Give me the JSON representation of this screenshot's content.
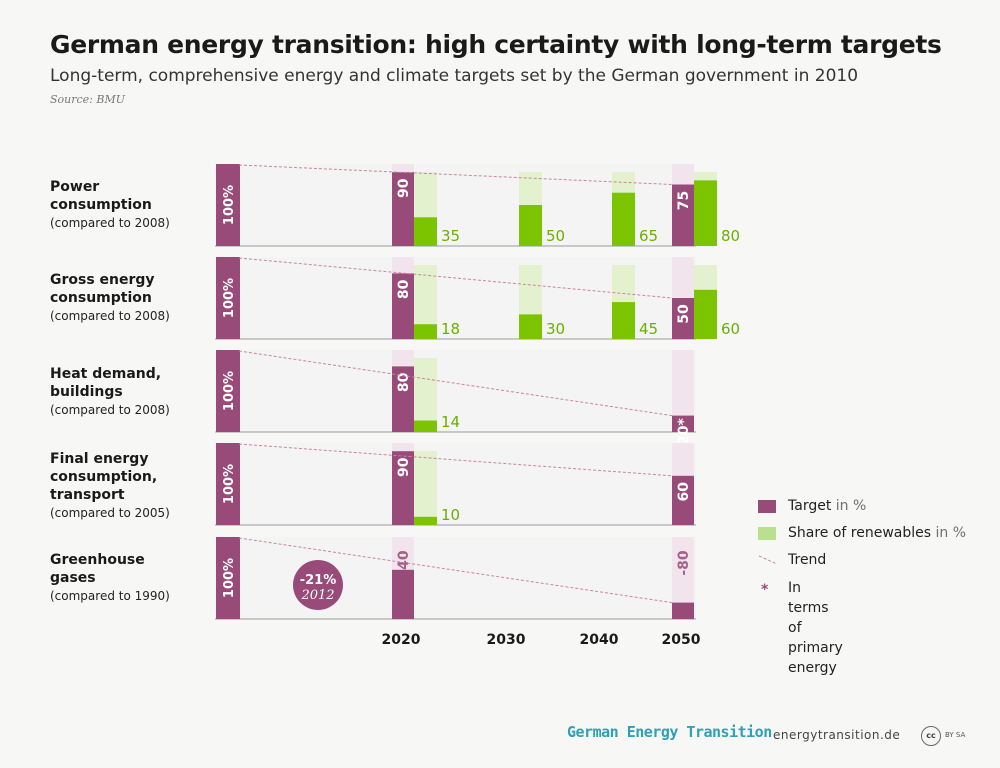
{
  "header": {
    "title": "German energy transition: high certainty with long-term targets",
    "subtitle": "Long-term, comprehensive energy and climate targets set by the German government in 2010",
    "source": "Source: BMU"
  },
  "rows": [
    {
      "label": "Power\nconsumption",
      "sub": "(compared to 2008)"
    },
    {
      "label": "Gross energy\nconsumption",
      "sub": "(compared to 2008)"
    },
    {
      "label": "Heat demand,\nbuildings",
      "sub": "(compared to 2008)"
    },
    {
      "label": "Final energy\nconsumption,\ntransport",
      "sub": "(compared to 2005)"
    },
    {
      "label": "Greenhouse\ngases",
      "sub": "(compared to 1990)"
    }
  ],
  "chart_data": {
    "type": "bar",
    "x_ticks": [
      "2020",
      "2030",
      "2040",
      "2050"
    ],
    "baseline_label": "100%",
    "colors": {
      "target": "#984b79",
      "renewables": "#7cc300",
      "renewables_light": "#e4f1cf",
      "trend": "#c9869f",
      "column_bg": "#f2e4ec",
      "panel_bg": "#f4f4f4"
    },
    "panels": [
      {
        "target": [
          {
            "x": "2020",
            "value": 90,
            "label": "90"
          },
          {
            "x": "2050",
            "value": 75,
            "label": "75"
          }
        ],
        "renewables": [
          {
            "x": "2020",
            "value": 35,
            "label": "35"
          },
          {
            "x": "2030",
            "value": 50,
            "label": "50"
          },
          {
            "x": "2040",
            "value": 65,
            "label": "65"
          },
          {
            "x": "2050",
            "value": 80,
            "label": "80"
          }
        ]
      },
      {
        "target": [
          {
            "x": "2020",
            "value": 80,
            "label": "80"
          },
          {
            "x": "2050",
            "value": 50,
            "label": "50"
          }
        ],
        "renewables": [
          {
            "x": "2020",
            "value": 18,
            "label": "18"
          },
          {
            "x": "2030",
            "value": 30,
            "label": "30"
          },
          {
            "x": "2040",
            "value": 45,
            "label": "45"
          },
          {
            "x": "2050",
            "value": 60,
            "label": "60"
          }
        ]
      },
      {
        "target": [
          {
            "x": "2020",
            "value": 80,
            "label": "80"
          },
          {
            "x": "2050",
            "value": 20,
            "label": "20*"
          }
        ],
        "renewables": [
          {
            "x": "2020",
            "value": 14,
            "label": "14"
          }
        ]
      },
      {
        "target": [
          {
            "x": "2020",
            "value": 90,
            "label": "90"
          },
          {
            "x": "2050",
            "value": 60,
            "label": "60"
          }
        ],
        "renewables": [
          {
            "x": "2020",
            "value": 10,
            "label": "10"
          }
        ]
      },
      {
        "target": [
          {
            "x": "2020",
            "value": 60,
            "label": "-40"
          },
          {
            "x": "2050",
            "value": 20,
            "label": "-80"
          }
        ],
        "renewables": [],
        "badge": {
          "value": "-21%",
          "year": "2012"
        }
      }
    ]
  },
  "legend": [
    {
      "text": "Target",
      "unit": " in %",
      "color": "#984b79"
    },
    {
      "text": "Share of renewables",
      "unit": " in %",
      "color": "#b9e08a"
    },
    {
      "text": "Trend",
      "unit": ""
    },
    {
      "text": "In terms of\nprimary energy",
      "unit": "",
      "symbol": "*"
    }
  ],
  "footer": {
    "brand": "German Energy Transition",
    "url": "energytransition.de",
    "cc": "cc",
    "license": "BY SA"
  }
}
